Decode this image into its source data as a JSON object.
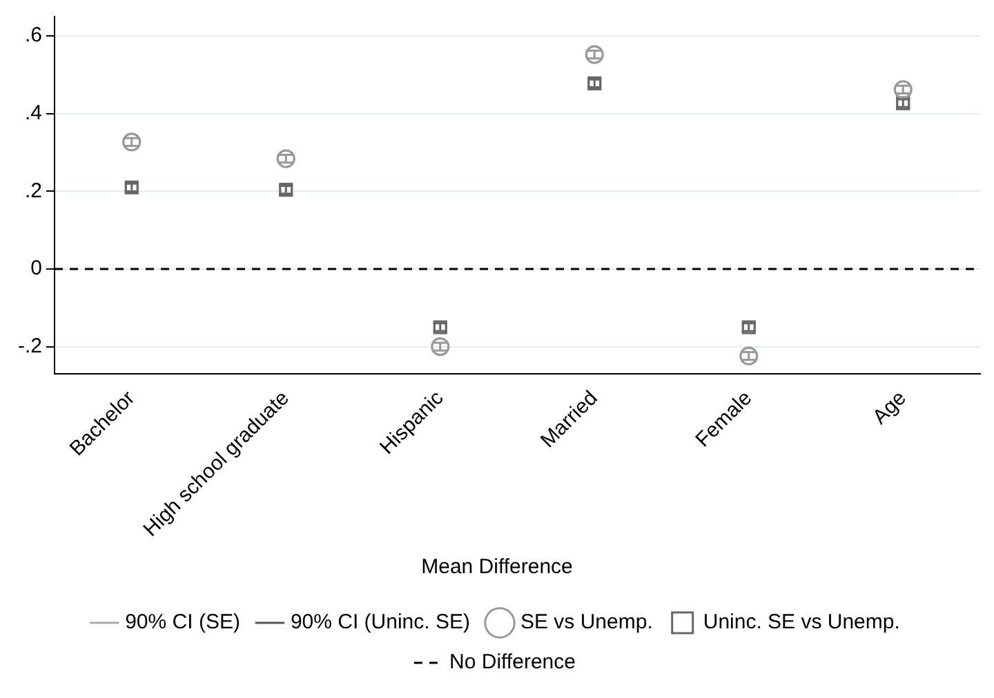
{
  "chart_data": {
    "type": "scatter",
    "legend_title": "Mean Difference",
    "categories": [
      "Bachelor",
      "High school graduate",
      "Hispanic",
      "Married",
      "Female",
      "Age"
    ],
    "series": [
      {
        "name": "90% CI (SE)",
        "color": "#aaaaaa",
        "type": "line",
        "values": [
          null,
          null,
          null,
          null,
          null,
          null
        ]
      },
      {
        "name": "90% CI (Uninc. SE)",
        "color": "#555555",
        "type": "line",
        "values": [
          null,
          null,
          null,
          null,
          null,
          null
        ]
      },
      {
        "name": "SE vs Unemp.",
        "color": "#999999",
        "marker": "circle",
        "values": [
          0.327,
          0.284,
          -0.2,
          0.552,
          -0.224,
          0.462
        ],
        "errors": [
          0.01,
          0.01,
          0.01,
          0.01,
          0.01,
          0.01
        ]
      },
      {
        "name": "Uninc. SE vs Unemp.",
        "color": "#666666",
        "marker": "square",
        "values": [
          0.21,
          0.204,
          -0.15,
          0.478,
          -0.15,
          0.427
        ],
        "errors": [
          0.01,
          0.01,
          0.01,
          0.01,
          0.01,
          0.01
        ]
      }
    ],
    "ref_lines": [
      {
        "axis": "y",
        "value": 0,
        "label": "No Difference",
        "color": "#000000",
        "line_style": "dashed"
      }
    ],
    "ylim": [
      -0.27,
      0.65
    ],
    "yticks": [
      {
        "value": -0.2,
        "label": "-.2"
      },
      0,
      {
        "value": 0.2,
        "label": ".2"
      },
      {
        "value": 0.4,
        "label": ".4"
      },
      {
        "value": 0.6,
        "label": ".6"
      }
    ],
    "grid": "y",
    "legend": "bottom"
  }
}
